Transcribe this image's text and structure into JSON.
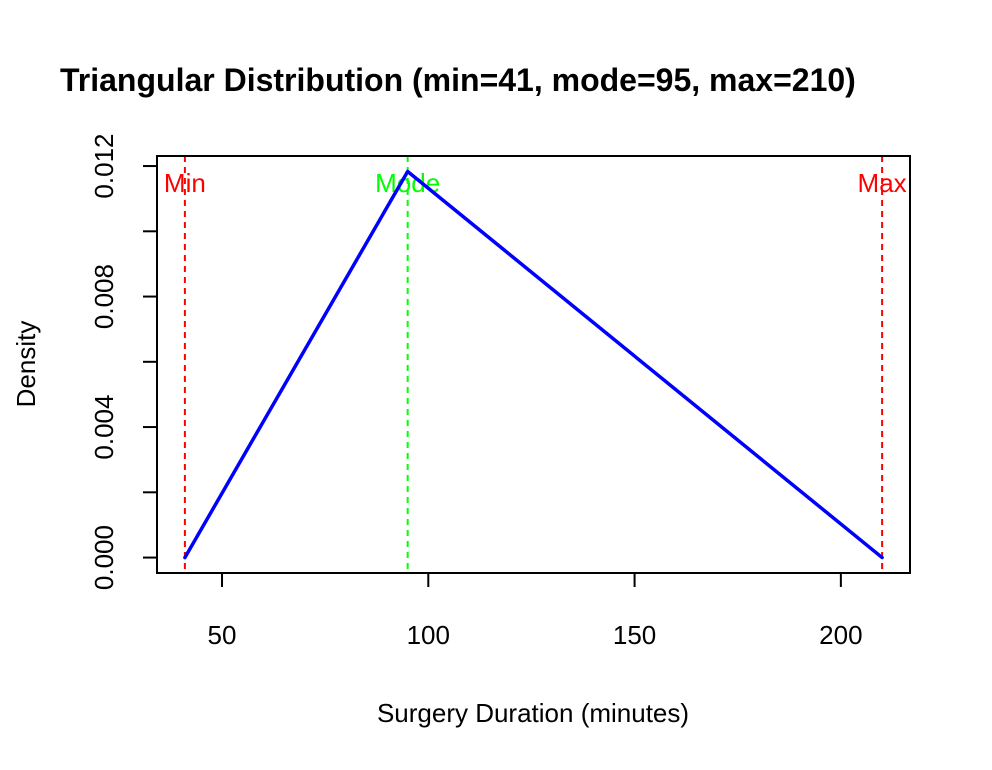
{
  "chart_data": {
    "type": "line",
    "title": "Triangular Distribution (min=41, mode=95, max=210)",
    "xlabel": "Surgery Duration (minutes)",
    "ylabel": "Density",
    "xlim": [
      34.24,
      216.76
    ],
    "ylim": [
      -0.000473,
      0.012308
    ],
    "x_ticks": [
      50,
      100,
      150,
      200
    ],
    "x_tick_labels": [
      "50",
      "100",
      "150",
      "200"
    ],
    "y_ticks": [
      0.0,
      0.002,
      0.004,
      0.006,
      0.008,
      0.01,
      0.012
    ],
    "y_tick_labels": [
      "0.000",
      "",
      "0.004",
      "",
      "0.008",
      "",
      "0.012"
    ],
    "grid": false,
    "series": [
      {
        "color": "#0000ff",
        "x": [
          41,
          95,
          210
        ],
        "y": [
          0.0,
          0.011834,
          0.0
        ]
      }
    ],
    "vlines": [
      {
        "x": 41,
        "label": "Min",
        "color": "#ff0000"
      },
      {
        "x": 95,
        "label": "Mode",
        "color": "#00ff00"
      },
      {
        "x": 210,
        "label": "Max",
        "color": "#ff0000"
      }
    ]
  }
}
